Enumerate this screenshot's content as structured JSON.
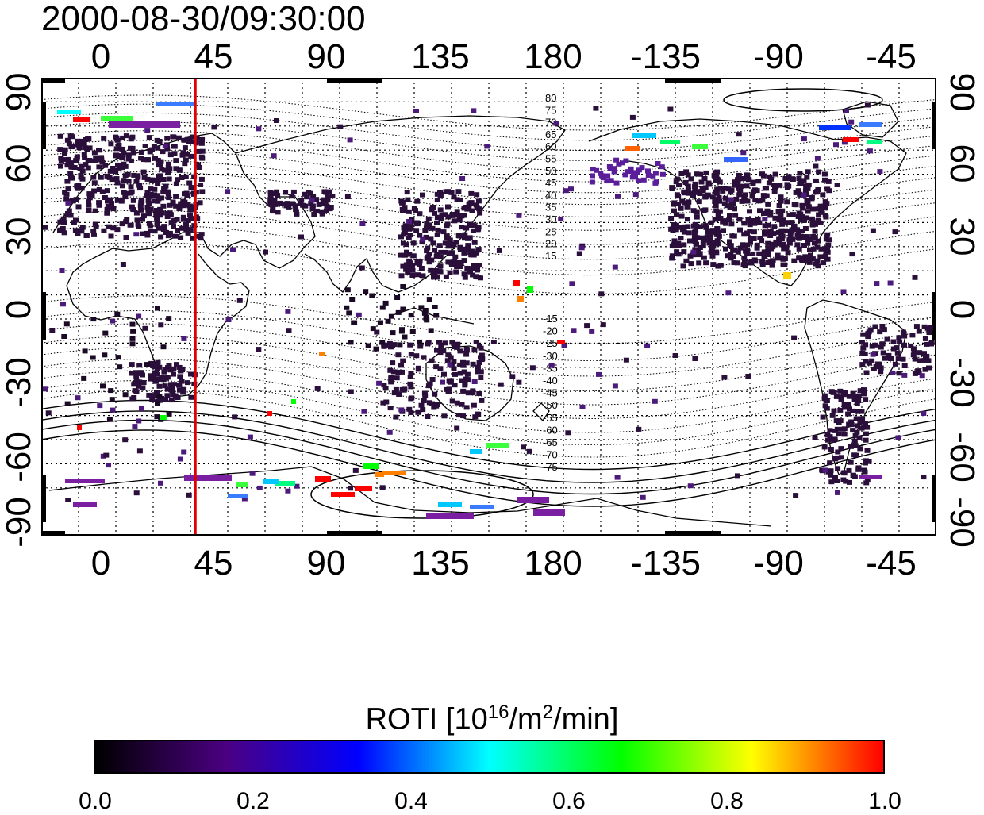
{
  "title": "2000-08-30/09:30:00",
  "x_top_labels": [
    "0",
    "45",
    "90",
    "135",
    "180",
    "-135",
    "-90",
    "-45"
  ],
  "x_bottom_labels": [
    "0",
    "45",
    "90",
    "135",
    "180",
    "-135",
    "-90",
    "-45"
  ],
  "y_left_labels": [
    "90",
    "60",
    "30",
    "0",
    "-30",
    "-60",
    "-90"
  ],
  "y_right_labels": [
    "90",
    "60",
    "30",
    "0",
    "-30",
    "-60",
    "-90"
  ],
  "contour_labels_north": [
    "80",
    "75",
    "70",
    "65",
    "60",
    "55",
    "50",
    "45",
    "40",
    "35",
    "30",
    "25",
    "20",
    "15"
  ],
  "contour_labels_south": [
    "-15",
    "-20",
    "-25",
    "-30",
    "-35",
    "-40",
    "-45",
    "-50",
    "-55",
    "-60",
    "-65",
    "-70",
    "-75"
  ],
  "marker_line": {
    "longitude": 38,
    "color": "#e00000"
  },
  "colorbar": {
    "title_prefix": "ROTI  [10",
    "title_sup1": "16",
    "title_mid": "/m",
    "title_sup2": "2",
    "title_suffix": "/min]",
    "ticks": [
      "0.0",
      "0.2",
      "0.4",
      "0.6",
      "0.8",
      "1.0"
    ],
    "colors": [
      "#000000",
      "#4b0082",
      "#0000ff",
      "#00ffff",
      "#00ff00",
      "#ffff00",
      "#ff0000"
    ]
  }
}
